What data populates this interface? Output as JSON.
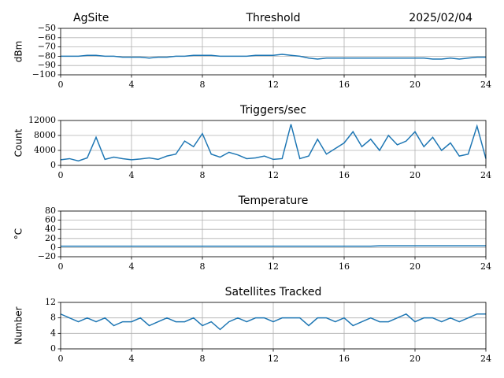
{
  "chart_data": [
    {
      "type": "line",
      "title": "Threshold",
      "annotations": [
        "AgSite",
        "2025/02/04"
      ],
      "ylabel": "dBm",
      "x": [
        0,
        0.5,
        1,
        1.5,
        2,
        2.5,
        3,
        3.5,
        4,
        4.5,
        5,
        5.5,
        6,
        6.5,
        7,
        7.5,
        8,
        8.5,
        9,
        9.5,
        10,
        10.5,
        11,
        11.5,
        12,
        12.5,
        13,
        13.5,
        14,
        14.5,
        15,
        15.5,
        16,
        16.5,
        17,
        17.5,
        18,
        18.5,
        19,
        19.5,
        20,
        20.5,
        21,
        21.5,
        22,
        22.5,
        23,
        23.5,
        24
      ],
      "series": [
        {
          "color": "#1f77b4",
          "values": [
            -80,
            -80,
            -80,
            -79,
            -79,
            -80,
            -80,
            -81,
            -81,
            -81,
            -82,
            -81,
            -81,
            -80,
            -80,
            -79,
            -79,
            -79,
            -80,
            -80,
            -80,
            -80,
            -79,
            -79,
            -79,
            -78,
            -79,
            -80,
            -82,
            -83,
            -82,
            -82,
            -82,
            -82,
            -82,
            -82,
            -82,
            -82,
            -82,
            -82,
            -82,
            -82,
            -83,
            -83,
            -82,
            -83,
            -82,
            -81,
            -81
          ]
        }
      ],
      "xlim": [
        0,
        24
      ],
      "xticks": [
        0,
        4,
        8,
        12,
        16,
        20,
        24
      ],
      "ylim": [
        -100,
        -50
      ],
      "yticks": [
        {
          "value": -100,
          "label": "−100"
        },
        {
          "value": -90,
          "label": "−90"
        },
        {
          "value": -80,
          "label": "−80"
        },
        {
          "value": -70,
          "label": "−70"
        },
        {
          "value": -60,
          "label": "−60"
        },
        {
          "value": -50,
          "label": "−50"
        }
      ],
      "grid": true
    },
    {
      "type": "line",
      "title": "Triggers/sec",
      "ylabel": "Count",
      "x": [
        0,
        0.5,
        1,
        1.5,
        2,
        2.5,
        3,
        3.5,
        4,
        4.5,
        5,
        5.5,
        6,
        6.5,
        7,
        7.5,
        8,
        8.5,
        9,
        9.5,
        10,
        10.5,
        11,
        11.5,
        12,
        12.5,
        13,
        13.5,
        14,
        14.5,
        15,
        15.5,
        16,
        16.5,
        17,
        17.5,
        18,
        18.5,
        19,
        19.5,
        20,
        20.5,
        21,
        21.5,
        22,
        22.5,
        23,
        23.5,
        24
      ],
      "series": [
        {
          "color": "#1f77b4",
          "values": [
            1500,
            1800,
            1200,
            2000,
            7500,
            1600,
            2200,
            1800,
            1500,
            1700,
            2000,
            1600,
            2500,
            3000,
            6500,
            5000,
            8500,
            3000,
            2200,
            3500,
            2800,
            1800,
            2000,
            2500,
            1600,
            1800,
            11000,
            1800,
            2500,
            7000,
            3000,
            4500,
            6000,
            9000,
            5000,
            7000,
            4000,
            8000,
            5500,
            6500,
            9000,
            5000,
            7500,
            4000,
            6000,
            2500,
            3000,
            10500,
            1800
          ]
        }
      ],
      "xlim": [
        0,
        24
      ],
      "xticks": [
        0,
        4,
        8,
        12,
        16,
        20,
        24
      ],
      "ylim": [
        0,
        12000
      ],
      "yticks": [
        0,
        4000,
        8000,
        12000
      ],
      "grid": true
    },
    {
      "type": "line",
      "title": "Temperature",
      "ylabel": "°C",
      "x": [
        0,
        0.5,
        1,
        1.5,
        2,
        2.5,
        3,
        3.5,
        4,
        4.5,
        5,
        5.5,
        6,
        6.5,
        7,
        7.5,
        8,
        8.5,
        9,
        9.5,
        10,
        10.5,
        11,
        11.5,
        12,
        12.5,
        13,
        13.5,
        14,
        14.5,
        15,
        15.5,
        16,
        16.5,
        17,
        17.5,
        18,
        18.5,
        19,
        19.5,
        20,
        20.5,
        21,
        21.5,
        22,
        22.5,
        23,
        23.5,
        24
      ],
      "series": [
        {
          "color": "#1f77b4",
          "values": [
            3,
            3,
            3,
            3,
            3,
            3,
            3,
            3,
            3,
            3,
            3,
            3,
            3,
            3,
            3,
            3,
            3,
            3,
            3,
            3,
            3,
            3,
            3,
            3,
            3,
            3,
            3,
            3,
            3,
            3,
            3,
            3,
            3,
            3,
            3,
            3,
            4,
            4,
            4,
            4,
            4,
            4,
            4,
            4,
            4,
            4,
            4,
            4,
            4
          ]
        }
      ],
      "xlim": [
        0,
        24
      ],
      "xticks": [
        0,
        4,
        8,
        12,
        16,
        20,
        24
      ],
      "ylim": [
        -20,
        80
      ],
      "yticks": [
        {
          "value": -20,
          "label": "−20"
        },
        0,
        20,
        40,
        60,
        80
      ],
      "grid": true
    },
    {
      "type": "line",
      "title": "Satellites Tracked",
      "ylabel": "Number",
      "x": [
        0,
        0.5,
        1,
        1.5,
        2,
        2.5,
        3,
        3.5,
        4,
        4.5,
        5,
        5.5,
        6,
        6.5,
        7,
        7.5,
        8,
        8.5,
        9,
        9.5,
        10,
        10.5,
        11,
        11.5,
        12,
        12.5,
        13,
        13.5,
        14,
        14.5,
        15,
        15.5,
        16,
        16.5,
        17,
        17.5,
        18,
        18.5,
        19,
        19.5,
        20,
        20.5,
        21,
        21.5,
        22,
        22.5,
        23,
        23.5,
        24
      ],
      "series": [
        {
          "color": "#1f77b4",
          "values": [
            9,
            8,
            7,
            8,
            7,
            8,
            6,
            7,
            7,
            8,
            6,
            7,
            8,
            7,
            7,
            8,
            6,
            7,
            5,
            7,
            8,
            7,
            8,
            8,
            7,
            8,
            8,
            8,
            6,
            8,
            8,
            7,
            8,
            6,
            7,
            8,
            7,
            7,
            8,
            9,
            7,
            8,
            8,
            7,
            8,
            7,
            8,
            9,
            9
          ]
        }
      ],
      "xlim": [
        0,
        24
      ],
      "xticks": [
        0,
        4,
        8,
        12,
        16,
        20,
        24
      ],
      "ylim": [
        0,
        12
      ],
      "yticks": [
        0,
        4,
        8,
        12
      ],
      "grid": true
    }
  ]
}
